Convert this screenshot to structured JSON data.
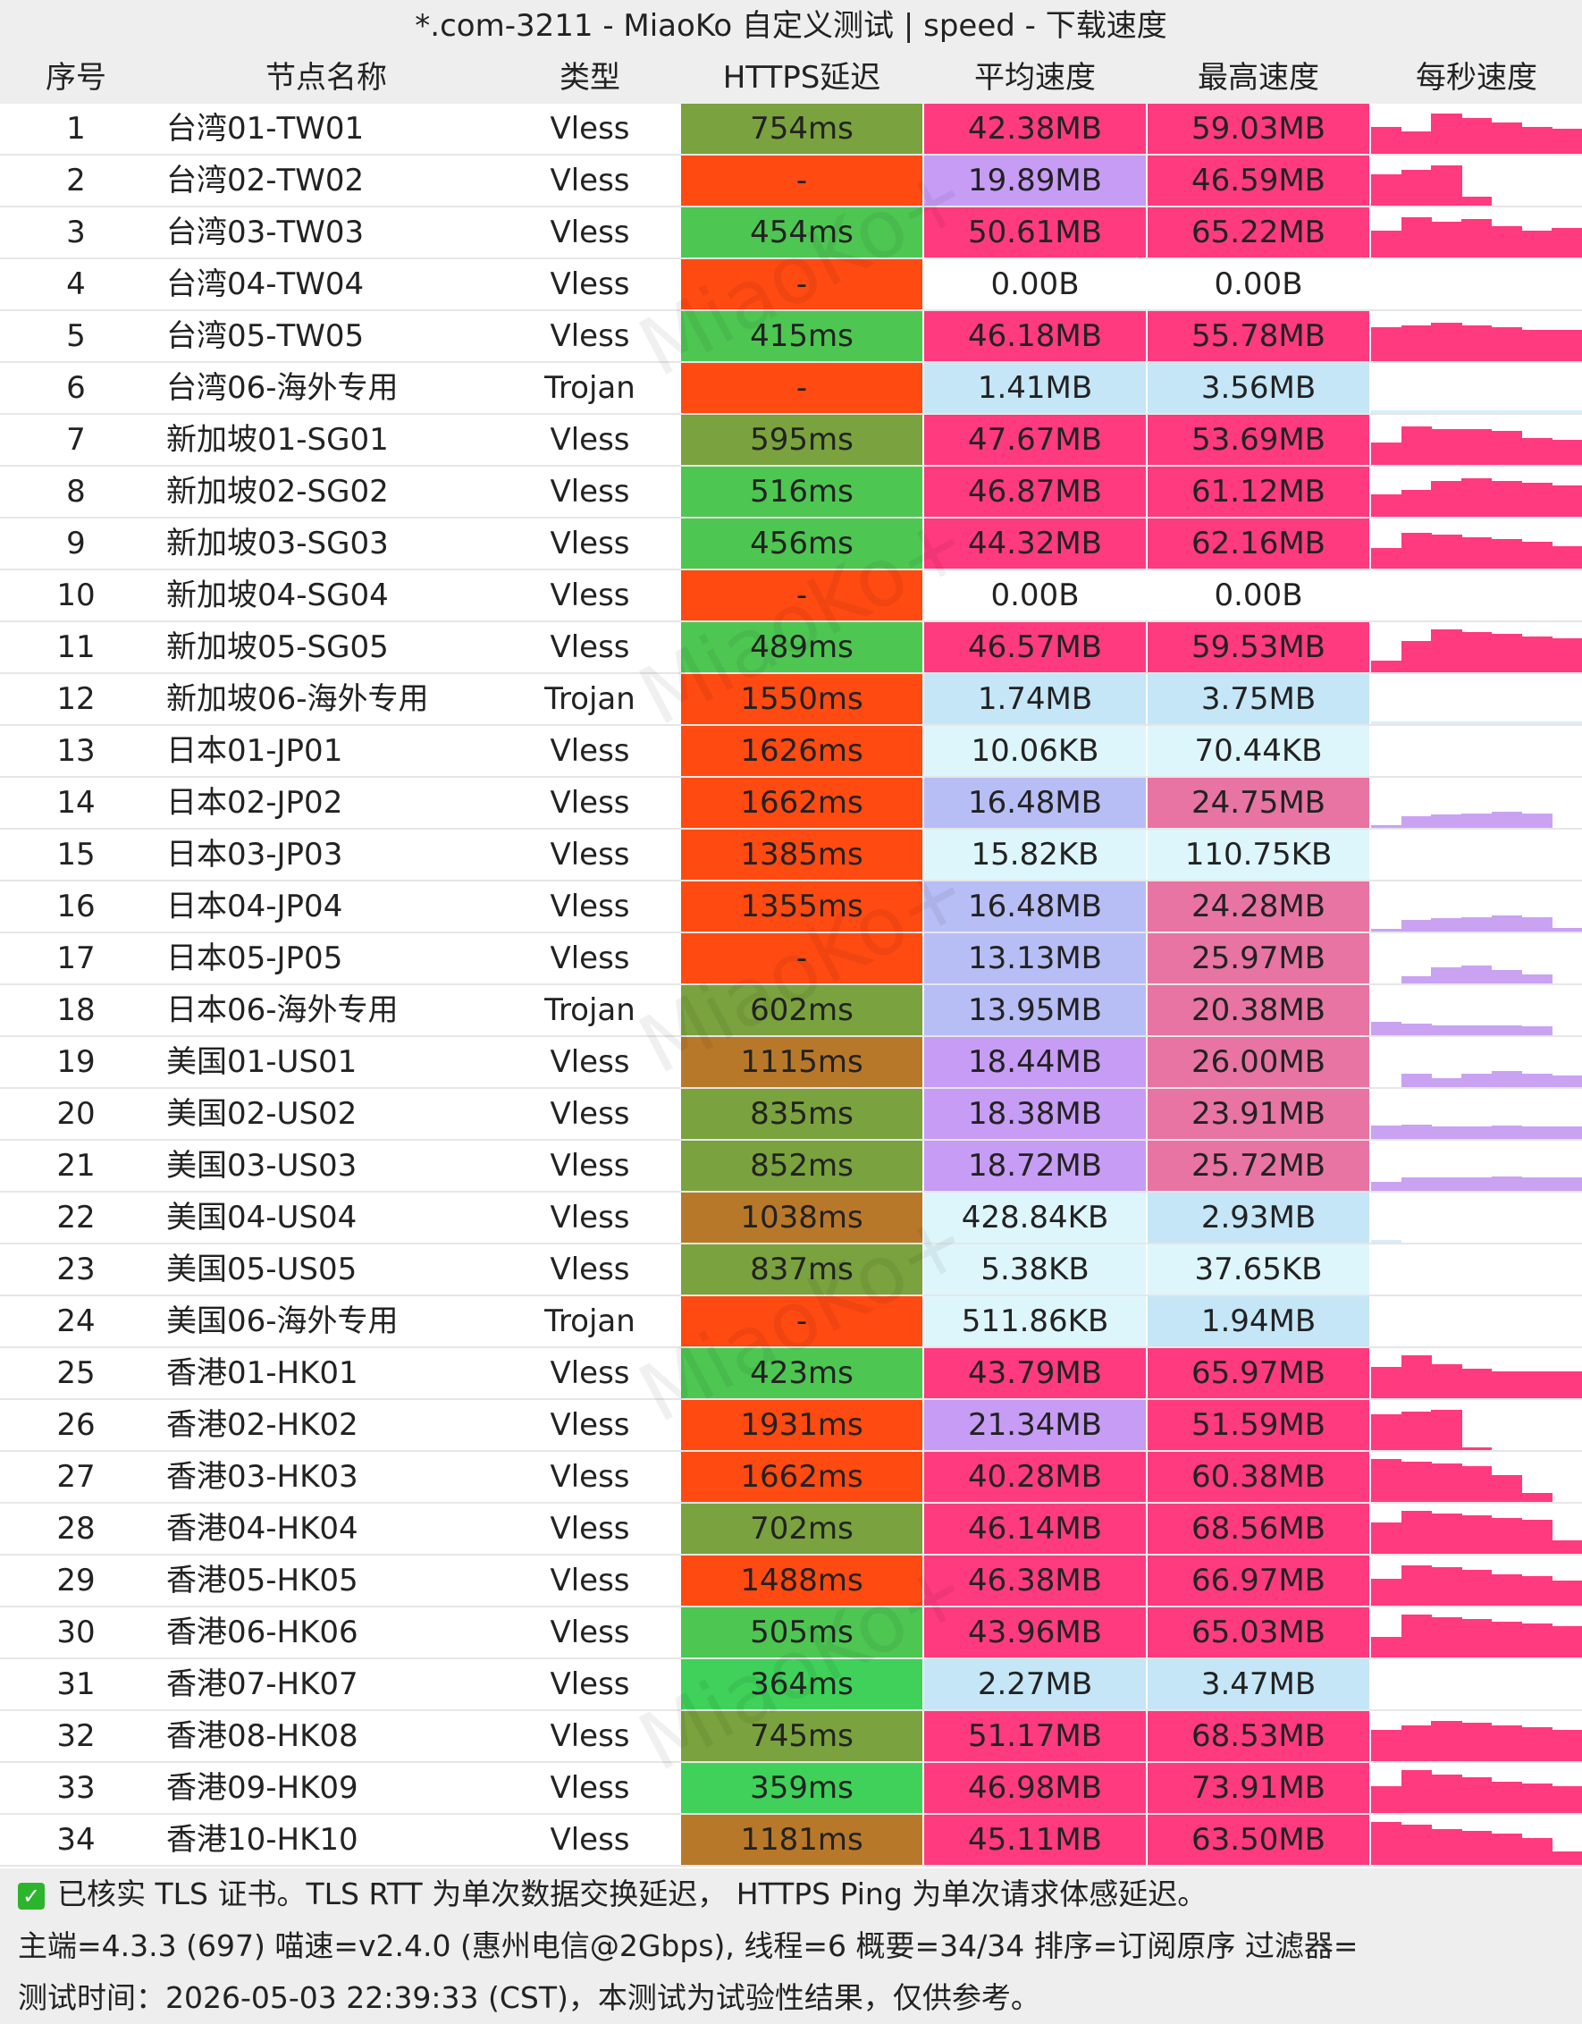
{
  "window": {
    "title": "*.com-3211 - MiaoKo 自定义测试 | speed - 下载速度"
  },
  "header": {
    "index": "序号",
    "name": "节点名称",
    "type": "类型",
    "latency": "HTTPS延迟",
    "avg_speed": "平均速度",
    "max_speed": "最高速度",
    "per_sec": "每秒速度"
  },
  "watermark": "MiaoKo+",
  "colors": {
    "lat_green": "#4ec652",
    "lat_olive": "#7aa23e",
    "lat_brown": "#b8782a",
    "lat_red": "#ff4a12",
    "spd_hot": "#ff3a7e",
    "spd_pink": "#e774a3",
    "spd_violet": "#c69cf5",
    "spd_blue": "#b7bdf5",
    "spd_cyan": "#c4e6f7",
    "spd_pale": "#ddf6fb",
    "spd_none": "#ffffff",
    "bar_hot": "#ff3a7e",
    "bar_violet": "#c9a3f1",
    "bar_blue": "#b7bdf5",
    "bar_pale": "#d7eef8"
  },
  "rows": [
    {
      "idx": "1",
      "name": "台湾01-TW01",
      "type": "Vless",
      "latency": "754ms",
      "lat_c": "#7aa23e",
      "avg": "42.38MB",
      "avg_c": "#ff3a7e",
      "max": "59.03MB",
      "max_c": "#ff3a7e",
      "spark": [
        0.6,
        0.5,
        0.9,
        0.8,
        0.7,
        0.6,
        0.55
      ],
      "spark_c": "#ff3a7e"
    },
    {
      "idx": "2",
      "name": "台湾02-TW02",
      "type": "Vless",
      "latency": "-",
      "lat_c": "#ff4a12",
      "avg": "19.89MB",
      "avg_c": "#c69cf5",
      "max": "46.59MB",
      "max_c": "#ff3a7e",
      "spark": [
        0.7,
        0.8,
        0.9,
        0.2,
        0,
        0,
        0
      ],
      "spark_c": "#ff3a7e"
    },
    {
      "idx": "3",
      "name": "台湾03-TW03",
      "type": "Vless",
      "latency": "454ms",
      "lat_c": "#4ec652",
      "avg": "50.61MB",
      "avg_c": "#ff3a7e",
      "max": "65.22MB",
      "max_c": "#ff3a7e",
      "spark": [
        0.6,
        0.9,
        0.8,
        0.85,
        0.7,
        0.6,
        0.65
      ],
      "spark_c": "#ff3a7e"
    },
    {
      "idx": "4",
      "name": "台湾04-TW04",
      "type": "Vless",
      "latency": "-",
      "lat_c": "#ff4a12",
      "avg": "0.00B",
      "avg_c": "#ffffff",
      "max": "0.00B",
      "max_c": "#ffffff",
      "spark": [],
      "spark_c": "#ff3a7e"
    },
    {
      "idx": "5",
      "name": "台湾05-TW05",
      "type": "Vless",
      "latency": "415ms",
      "lat_c": "#4ec652",
      "avg": "46.18MB",
      "avg_c": "#ff3a7e",
      "max": "55.78MB",
      "max_c": "#ff3a7e",
      "spark": [
        0.75,
        0.8,
        0.85,
        0.8,
        0.75,
        0.7,
        0.7
      ],
      "spark_c": "#ff3a7e"
    },
    {
      "idx": "6",
      "name": "台湾06-海外专用",
      "type": "Trojan",
      "latency": "-",
      "lat_c": "#ff4a12",
      "avg": "1.41MB",
      "avg_c": "#c4e6f7",
      "max": "3.56MB",
      "max_c": "#c4e6f7",
      "spark": [
        0.03,
        0.03,
        0.03,
        0.03,
        0.03,
        0.03,
        0.03
      ],
      "spark_c": "#d7eef8"
    },
    {
      "idx": "7",
      "name": "新加坡01-SG01",
      "type": "Vless",
      "latency": "595ms",
      "lat_c": "#7aa23e",
      "avg": "47.67MB",
      "avg_c": "#ff3a7e",
      "max": "53.69MB",
      "max_c": "#ff3a7e",
      "spark": [
        0.5,
        0.85,
        0.8,
        0.8,
        0.75,
        0.6,
        0.55
      ],
      "spark_c": "#ff3a7e"
    },
    {
      "idx": "8",
      "name": "新加坡02-SG02",
      "type": "Vless",
      "latency": "516ms",
      "lat_c": "#4ec652",
      "avg": "46.87MB",
      "avg_c": "#ff3a7e",
      "max": "61.12MB",
      "max_c": "#ff3a7e",
      "spark": [
        0.5,
        0.6,
        0.8,
        0.85,
        0.8,
        0.75,
        0.7
      ],
      "spark_c": "#ff3a7e"
    },
    {
      "idx": "9",
      "name": "新加坡03-SG03",
      "type": "Vless",
      "latency": "456ms",
      "lat_c": "#4ec652",
      "avg": "44.32MB",
      "avg_c": "#ff3a7e",
      "max": "62.16MB",
      "max_c": "#ff3a7e",
      "spark": [
        0.45,
        0.8,
        0.75,
        0.7,
        0.65,
        0.6,
        0.5
      ],
      "spark_c": "#ff3a7e"
    },
    {
      "idx": "10",
      "name": "新加坡04-SG04",
      "type": "Vless",
      "latency": "-",
      "lat_c": "#ff4a12",
      "avg": "0.00B",
      "avg_c": "#ffffff",
      "max": "0.00B",
      "max_c": "#ffffff",
      "spark": [],
      "spark_c": "#ff3a7e"
    },
    {
      "idx": "11",
      "name": "新加坡05-SG05",
      "type": "Vless",
      "latency": "489ms",
      "lat_c": "#4ec652",
      "avg": "46.57MB",
      "avg_c": "#ff3a7e",
      "max": "59.53MB",
      "max_c": "#ff3a7e",
      "spark": [
        0.25,
        0.7,
        0.95,
        0.9,
        0.85,
        0.8,
        0.75
      ],
      "spark_c": "#ff3a7e"
    },
    {
      "idx": "12",
      "name": "新加坡06-海外专用",
      "type": "Trojan",
      "latency": "1550ms",
      "lat_c": "#ff4a12",
      "avg": "1.74MB",
      "avg_c": "#c4e6f7",
      "max": "3.75MB",
      "max_c": "#c4e6f7",
      "spark": [
        0.03,
        0.03,
        0.03,
        0.03,
        0.03,
        0.03,
        0.03
      ],
      "spark_c": "#d7eef8"
    },
    {
      "idx": "13",
      "name": "日本01-JP01",
      "type": "Vless",
      "latency": "1626ms",
      "lat_c": "#ff4a12",
      "avg": "10.06KB",
      "avg_c": "#ddf6fb",
      "max": "70.44KB",
      "max_c": "#ddf6fb",
      "spark": [],
      "spark_c": "#d7eef8"
    },
    {
      "idx": "14",
      "name": "日本02-JP02",
      "type": "Vless",
      "latency": "1662ms",
      "lat_c": "#ff4a12",
      "avg": "16.48MB",
      "avg_c": "#b7bdf5",
      "max": "24.75MB",
      "max_c": "#e774a3",
      "spark": [
        0.05,
        0.25,
        0.3,
        0.32,
        0.35,
        0.32,
        0
      ],
      "spark_c": "#c9a3f1"
    },
    {
      "idx": "15",
      "name": "日本03-JP03",
      "type": "Vless",
      "latency": "1385ms",
      "lat_c": "#ff4a12",
      "avg": "15.82KB",
      "avg_c": "#ddf6fb",
      "max": "110.75KB",
      "max_c": "#ddf6fb",
      "spark": [],
      "spark_c": "#d7eef8"
    },
    {
      "idx": "16",
      "name": "日本04-JP04",
      "type": "Vless",
      "latency": "1355ms",
      "lat_c": "#ff4a12",
      "avg": "16.48MB",
      "avg_c": "#b7bdf5",
      "max": "24.28MB",
      "max_c": "#e774a3",
      "spark": [
        0.05,
        0.25,
        0.3,
        0.32,
        0.35,
        0.32,
        0.08
      ],
      "spark_c": "#c9a3f1"
    },
    {
      "idx": "17",
      "name": "日本05-JP05",
      "type": "Vless",
      "latency": "-",
      "lat_c": "#ff4a12",
      "avg": "13.13MB",
      "avg_c": "#b7bdf5",
      "max": "25.97MB",
      "max_c": "#e774a3",
      "spark": [
        0,
        0.15,
        0.35,
        0.4,
        0.3,
        0.2,
        0
      ],
      "spark_c": "#c9a3f1"
    },
    {
      "idx": "18",
      "name": "日本06-海外专用",
      "type": "Trojan",
      "latency": "602ms",
      "lat_c": "#7aa23e",
      "avg": "13.95MB",
      "avg_c": "#b7bdf5",
      "max": "20.38MB",
      "max_c": "#e774a3",
      "spark": [
        0.3,
        0.25,
        0.22,
        0.22,
        0.22,
        0.2,
        0
      ],
      "spark_c": "#c9a3f1"
    },
    {
      "idx": "19",
      "name": "美国01-US01",
      "type": "Vless",
      "latency": "1115ms",
      "lat_c": "#b8782a",
      "avg": "18.44MB",
      "avg_c": "#c69cf5",
      "max": "26.00MB",
      "max_c": "#e774a3",
      "spark": [
        0,
        0.3,
        0.2,
        0.3,
        0.35,
        0.3,
        0.25
      ],
      "spark_c": "#c9a3f1"
    },
    {
      "idx": "20",
      "name": "美国02-US02",
      "type": "Vless",
      "latency": "835ms",
      "lat_c": "#7aa23e",
      "avg": "18.38MB",
      "avg_c": "#c69cf5",
      "max": "23.91MB",
      "max_c": "#e774a3",
      "spark": [
        0.3,
        0.32,
        0.28,
        0.28,
        0.3,
        0.28,
        0.28
      ],
      "spark_c": "#c9a3f1"
    },
    {
      "idx": "21",
      "name": "美国03-US03",
      "type": "Vless",
      "latency": "852ms",
      "lat_c": "#7aa23e",
      "avg": "18.72MB",
      "avg_c": "#c69cf5",
      "max": "25.72MB",
      "max_c": "#e774a3",
      "spark": [
        0.2,
        0.3,
        0.3,
        0.3,
        0.32,
        0.3,
        0.3
      ],
      "spark_c": "#c9a3f1"
    },
    {
      "idx": "22",
      "name": "美国04-US04",
      "type": "Vless",
      "latency": "1038ms",
      "lat_c": "#b8782a",
      "avg": "428.84KB",
      "avg_c": "#ddf6fb",
      "max": "2.93MB",
      "max_c": "#c4e6f7",
      "spark": [
        0.03,
        0,
        0,
        0,
        0,
        0,
        0
      ],
      "spark_c": "#d7eef8"
    },
    {
      "idx": "23",
      "name": "美国05-US05",
      "type": "Vless",
      "latency": "837ms",
      "lat_c": "#7aa23e",
      "avg": "5.38KB",
      "avg_c": "#ddf6fb",
      "max": "37.65KB",
      "max_c": "#ddf6fb",
      "spark": [],
      "spark_c": "#d7eef8"
    },
    {
      "idx": "24",
      "name": "美国06-海外专用",
      "type": "Trojan",
      "latency": "-",
      "lat_c": "#ff4a12",
      "avg": "511.86KB",
      "avg_c": "#ddf6fb",
      "max": "1.94MB",
      "max_c": "#c4e6f7",
      "spark": [],
      "spark_c": "#d7eef8"
    },
    {
      "idx": "25",
      "name": "香港01-HK01",
      "type": "Vless",
      "latency": "423ms",
      "lat_c": "#4ec652",
      "avg": "43.79MB",
      "avg_c": "#ff3a7e",
      "max": "65.97MB",
      "max_c": "#ff3a7e",
      "spark": [
        0.7,
        0.95,
        0.75,
        0.65,
        0.6,
        0.6,
        0.6
      ],
      "spark_c": "#ff3a7e"
    },
    {
      "idx": "26",
      "name": "香港02-HK02",
      "type": "Vless",
      "latency": "1931ms",
      "lat_c": "#ff4a12",
      "avg": "21.34MB",
      "avg_c": "#c69cf5",
      "max": "51.59MB",
      "max_c": "#ff3a7e",
      "spark": [
        0.8,
        0.85,
        0.9,
        0.05,
        0,
        0,
        0
      ],
      "spark_c": "#ff3a7e"
    },
    {
      "idx": "27",
      "name": "香港03-HK03",
      "type": "Vless",
      "latency": "1662ms",
      "lat_c": "#ff4a12",
      "avg": "40.28MB",
      "avg_c": "#ff3a7e",
      "max": "60.38MB",
      "max_c": "#ff3a7e",
      "spark": [
        0.95,
        0.9,
        0.85,
        0.8,
        0.6,
        0.2,
        0
      ],
      "spark_c": "#ff3a7e"
    },
    {
      "idx": "28",
      "name": "香港04-HK04",
      "type": "Vless",
      "latency": "702ms",
      "lat_c": "#7aa23e",
      "avg": "46.14MB",
      "avg_c": "#ff3a7e",
      "max": "68.56MB",
      "max_c": "#ff3a7e",
      "spark": [
        0.7,
        0.95,
        0.9,
        0.85,
        0.8,
        0.75,
        0.3
      ],
      "spark_c": "#ff3a7e"
    },
    {
      "idx": "29",
      "name": "香港05-HK05",
      "type": "Vless",
      "latency": "1488ms",
      "lat_c": "#ff4a12",
      "avg": "46.38MB",
      "avg_c": "#ff3a7e",
      "max": "66.97MB",
      "max_c": "#ff3a7e",
      "spark": [
        0.6,
        0.9,
        0.85,
        0.8,
        0.7,
        0.65,
        0.55
      ],
      "spark_c": "#ff3a7e"
    },
    {
      "idx": "30",
      "name": "香港06-HK06",
      "type": "Vless",
      "latency": "505ms",
      "lat_c": "#4ec652",
      "avg": "43.96MB",
      "avg_c": "#ff3a7e",
      "max": "65.03MB",
      "max_c": "#ff3a7e",
      "spark": [
        0.45,
        0.95,
        0.9,
        0.85,
        0.8,
        0.75,
        0.7
      ],
      "spark_c": "#ff3a7e"
    },
    {
      "idx": "31",
      "name": "香港07-HK07",
      "type": "Vless",
      "latency": "364ms",
      "lat_c": "#3fd15a",
      "avg": "2.27MB",
      "avg_c": "#c4e6f7",
      "max": "3.47MB",
      "max_c": "#c4e6f7",
      "spark": [],
      "spark_c": "#d7eef8"
    },
    {
      "idx": "32",
      "name": "香港08-HK08",
      "type": "Vless",
      "latency": "745ms",
      "lat_c": "#7aa23e",
      "avg": "51.17MB",
      "avg_c": "#ff3a7e",
      "max": "68.53MB",
      "max_c": "#ff3a7e",
      "spark": [
        0.7,
        0.8,
        0.9,
        0.85,
        0.8,
        0.75,
        0.7
      ],
      "spark_c": "#ff3a7e"
    },
    {
      "idx": "33",
      "name": "香港09-HK09",
      "type": "Vless",
      "latency": "359ms",
      "lat_c": "#3fd15a",
      "avg": "46.98MB",
      "avg_c": "#ff3a7e",
      "max": "73.91MB",
      "max_c": "#ff3a7e",
      "spark": [
        0.6,
        0.95,
        0.85,
        0.8,
        0.7,
        0.65,
        0.6
      ],
      "spark_c": "#ff3a7e"
    },
    {
      "idx": "34",
      "name": "香港10-HK10",
      "type": "Vless",
      "latency": "1181ms",
      "lat_c": "#b8782a",
      "avg": "45.11MB",
      "avg_c": "#ff3a7e",
      "max": "63.50MB",
      "max_c": "#ff3a7e",
      "spark": [
        0.95,
        0.9,
        0.8,
        0.75,
        0.7,
        0.6,
        0.3
      ],
      "spark_c": "#ff3a7e"
    }
  ],
  "footer": {
    "tls_note": "已核实 TLS 证书。TLS RTT 为单次数据交换延迟， HTTPS Ping 为单次请求体感延迟。",
    "meta": "主端=4.3.3 (697) 喵速=v2.4.0 (惠州电信@2Gbps), 线程=6 概要=34/34 排序=订阅原序 过滤器=",
    "time": "测试时间：2026-05-03 22:39:33 (CST)，本测试为试验性结果，仅供参考。"
  }
}
